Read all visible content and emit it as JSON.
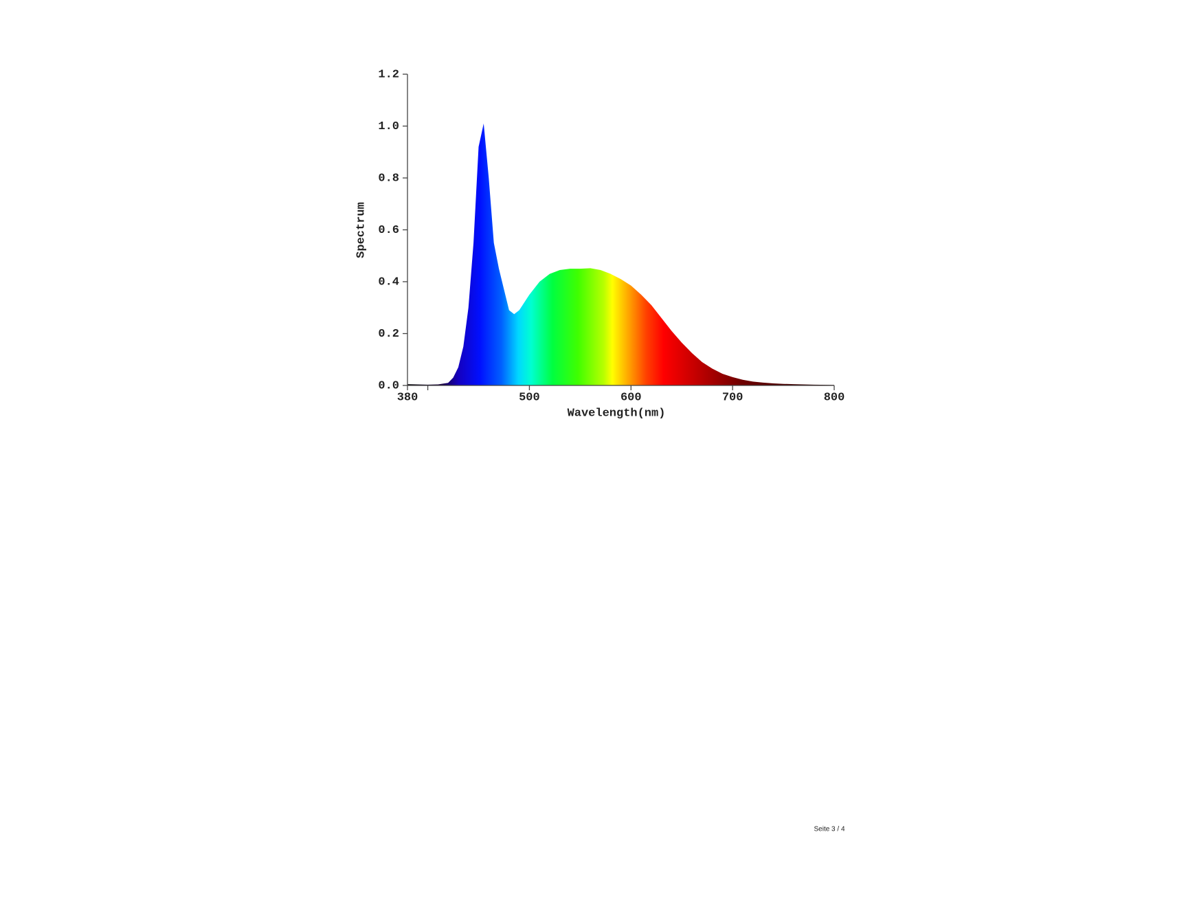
{
  "chart_data": {
    "type": "area",
    "xlabel": "Wavelength(nm)",
    "ylabel": "Spectrum",
    "x": [
      380,
      390,
      400,
      410,
      420,
      425,
      430,
      435,
      440,
      445,
      450,
      455,
      460,
      465,
      470,
      475,
      480,
      485,
      490,
      500,
      510,
      520,
      530,
      540,
      550,
      560,
      570,
      580,
      590,
      600,
      610,
      620,
      630,
      640,
      650,
      660,
      670,
      680,
      690,
      700,
      710,
      720,
      730,
      740,
      750,
      760,
      780,
      800
    ],
    "values": [
      0.005,
      0.004,
      0.003,
      0.004,
      0.01,
      0.03,
      0.07,
      0.15,
      0.3,
      0.55,
      0.92,
      1.01,
      0.8,
      0.55,
      0.45,
      0.37,
      0.29,
      0.275,
      0.29,
      0.35,
      0.4,
      0.43,
      0.445,
      0.45,
      0.45,
      0.452,
      0.445,
      0.43,
      0.41,
      0.385,
      0.35,
      0.31,
      0.26,
      0.21,
      0.165,
      0.125,
      0.09,
      0.065,
      0.045,
      0.032,
      0.022,
      0.015,
      0.011,
      0.008,
      0.006,
      0.005,
      0.003,
      0.002
    ],
    "xlim": [
      380,
      800
    ],
    "xticks": [
      380,
      {
        "value": 400,
        "label": null
      },
      500,
      600,
      700,
      800
    ],
    "ylim": [
      0,
      1.2
    ],
    "yticks": [
      {
        "value": 0,
        "label": "0.0"
      },
      0.2,
      0.4,
      0.6,
      0.8,
      {
        "value": 1,
        "label": "1.0"
      },
      1.2
    ]
  },
  "footer": "Seite 3 / 4"
}
